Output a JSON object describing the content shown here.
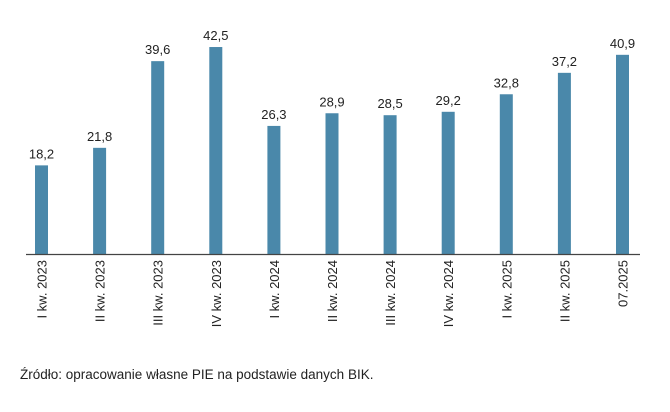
{
  "chart_data": {
    "type": "bar",
    "title": "",
    "xlabel": "",
    "ylabel": "",
    "ylim": [
      0,
      45
    ],
    "grid": false,
    "categories": [
      "I kw. 2023",
      "II kw. 2023",
      "III kw. 2023",
      "IV kw. 2023",
      "I kw. 2024",
      "II kw. 2024",
      "III kw. 2024",
      "IV kw. 2024",
      "I kw. 2025",
      "II kw. 2025",
      "07.2025"
    ],
    "values": [
      18.2,
      21.8,
      39.6,
      42.5,
      26.3,
      28.9,
      28.5,
      29.2,
      32.8,
      37.2,
      40.9
    ],
    "value_labels": [
      "18,2",
      "21,8",
      "39,6",
      "42,5",
      "26,3",
      "28,9",
      "28,5",
      "29,2",
      "32,8",
      "37,2",
      "40,9"
    ],
    "bar_color": "#4a88aa",
    "axis_color": "#444444"
  },
  "source": "Źródło: opracowanie własne PIE na podstawie danych BIK."
}
